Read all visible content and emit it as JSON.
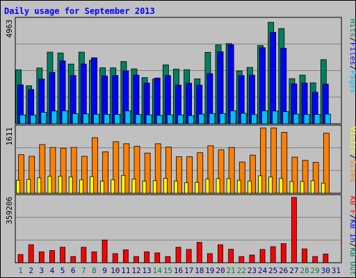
{
  "title": "Daily usage for September 2013",
  "colors": {
    "outer_bg": "#c0c0c0",
    "title_color": "#0000ff",
    "plot_bg": "#c0c0c0",
    "grid": "#808080",
    "hits": "#008060",
    "files": "#0000ff",
    "pages": "#00c0ff",
    "sites": "#ff8000",
    "visits": "#ffff00",
    "kbf": "#ff0000",
    "kbin": "#0000ff",
    "kbout": "#008060",
    "weekend_day": "#008040",
    "weekday_day": "#000080"
  },
  "chart_data": [
    {
      "type": "bar",
      "name": "hits-files-pages",
      "ymax_label": "4963",
      "ylim": [
        0,
        4963
      ],
      "legend": [
        {
          "label": "Hits",
          "color_key": "hits"
        },
        {
          "label": "Files",
          "color_key": "files"
        },
        {
          "label": "Pages",
          "color_key": "pages"
        }
      ],
      "categories": [
        "1",
        "2",
        "3",
        "4",
        "5",
        "6",
        "7",
        "8",
        "9",
        "10",
        "11",
        "12",
        "13",
        "14",
        "15",
        "16",
        "17",
        "18",
        "19",
        "20",
        "21",
        "22",
        "23",
        "24",
        "25",
        "26",
        "27",
        "28",
        "29",
        "30",
        "31"
      ],
      "series": [
        {
          "name": "Hits",
          "color_key": "hits",
          "values": [
            2580,
            1820,
            2670,
            3430,
            3390,
            2860,
            3430,
            3040,
            2680,
            2680,
            2980,
            2630,
            2210,
            2140,
            2820,
            2620,
            2590,
            2150,
            3420,
            3780,
            3840,
            2530,
            2700,
            3750,
            4860,
            4560,
            2160,
            2330,
            1960,
            3070,
            0
          ]
        },
        {
          "name": "Files",
          "color_key": "files",
          "values": [
            1860,
            1640,
            2140,
            2460,
            3010,
            2310,
            2860,
            3160,
            2290,
            2310,
            2530,
            2330,
            1950,
            2190,
            2310,
            1850,
            1940,
            1850,
            2400,
            3450,
            3780,
            2310,
            2330,
            3640,
            4380,
            3620,
            1910,
            1950,
            1510,
            1900,
            0
          ]
        },
        {
          "name": "Pages",
          "color_key": "pages",
          "values": [
            420,
            410,
            550,
            610,
            620,
            480,
            470,
            450,
            450,
            450,
            620,
            440,
            420,
            400,
            430,
            420,
            380,
            460,
            490,
            490,
            620,
            500,
            440,
            620,
            610,
            580,
            460,
            440,
            450,
            460,
            0
          ]
        }
      ]
    },
    {
      "type": "bar",
      "name": "sites-visits",
      "ymax_label": "1611",
      "ylim": [
        0,
        1611
      ],
      "legend": [
        {
          "label": "Visits",
          "color_key": "visits"
        },
        {
          "label": "Sites",
          "color_key": "sites"
        }
      ],
      "categories": [
        "1",
        "2",
        "3",
        "4",
        "5",
        "6",
        "7",
        "8",
        "9",
        "10",
        "11",
        "12",
        "13",
        "14",
        "15",
        "16",
        "17",
        "18",
        "19",
        "20",
        "21",
        "22",
        "23",
        "24",
        "25",
        "26",
        "27",
        "28",
        "29",
        "30",
        "31"
      ],
      "series": [
        {
          "name": "Sites",
          "color_key": "sites",
          "values": [
            950,
            910,
            1200,
            1130,
            1110,
            1130,
            910,
            1370,
            1020,
            1270,
            1220,
            1160,
            990,
            1220,
            1140,
            900,
            900,
            1000,
            1170,
            1070,
            1130,
            770,
            940,
            1610,
            1610,
            1500,
            890,
            810,
            760,
            1480,
            0
          ]
        },
        {
          "name": "Visits",
          "color_key": "visits",
          "values": [
            320,
            340,
            380,
            420,
            420,
            400,
            330,
            410,
            300,
            330,
            440,
            350,
            300,
            310,
            370,
            300,
            260,
            270,
            350,
            360,
            360,
            320,
            300,
            430,
            400,
            370,
            290,
            290,
            310,
            250,
            0
          ]
        }
      ]
    },
    {
      "type": "bar",
      "name": "kbytes",
      "ymax_label": "359206",
      "ylim": [
        0,
        359206
      ],
      "legend": [
        {
          "label": "KB F",
          "color_key": "kbf"
        },
        {
          "label": "KB In",
          "color_key": "kbin"
        },
        {
          "label": "KB Out",
          "color_key": "kbout"
        }
      ],
      "categories": [
        "1",
        "2",
        "3",
        "4",
        "5",
        "6",
        "7",
        "8",
        "9",
        "10",
        "11",
        "12",
        "13",
        "14",
        "15",
        "16",
        "17",
        "18",
        "19",
        "20",
        "21",
        "22",
        "23",
        "24",
        "25",
        "26",
        "27",
        "28",
        "29",
        "30",
        "31"
      ],
      "series": [
        {
          "name": "KB F",
          "color_key": "kbf",
          "values": [
            45000,
            99000,
            60000,
            67000,
            85000,
            34000,
            85000,
            60000,
            125000,
            50000,
            71000,
            34000,
            60000,
            54000,
            34000,
            85000,
            73000,
            112000,
            50000,
            99000,
            74000,
            34000,
            42000,
            73000,
            88000,
            105000,
            359206,
            76000,
            34000,
            48000,
            0
          ]
        }
      ]
    }
  ],
  "x_days": [
    {
      "label": "1",
      "weekend": true
    },
    {
      "label": "2",
      "weekend": false
    },
    {
      "label": "3",
      "weekend": false
    },
    {
      "label": "4",
      "weekend": false
    },
    {
      "label": "5",
      "weekend": false
    },
    {
      "label": "6",
      "weekend": false
    },
    {
      "label": "7",
      "weekend": true
    },
    {
      "label": "8",
      "weekend": true
    },
    {
      "label": "9",
      "weekend": false
    },
    {
      "label": "10",
      "weekend": false
    },
    {
      "label": "11",
      "weekend": false
    },
    {
      "label": "12",
      "weekend": false
    },
    {
      "label": "13",
      "weekend": false
    },
    {
      "label": "14",
      "weekend": true
    },
    {
      "label": "15",
      "weekend": true
    },
    {
      "label": "16",
      "weekend": false
    },
    {
      "label": "17",
      "weekend": false
    },
    {
      "label": "18",
      "weekend": false
    },
    {
      "label": "19",
      "weekend": false
    },
    {
      "label": "20",
      "weekend": false
    },
    {
      "label": "21",
      "weekend": true
    },
    {
      "label": "22",
      "weekend": true
    },
    {
      "label": "23",
      "weekend": false
    },
    {
      "label": "24",
      "weekend": false
    },
    {
      "label": "25",
      "weekend": false
    },
    {
      "label": "26",
      "weekend": false
    },
    {
      "label": "27",
      "weekend": false
    },
    {
      "label": "28",
      "weekend": true
    },
    {
      "label": "29",
      "weekend": true
    },
    {
      "label": "30",
      "weekend": false
    },
    {
      "label": "31",
      "weekend": false
    }
  ]
}
